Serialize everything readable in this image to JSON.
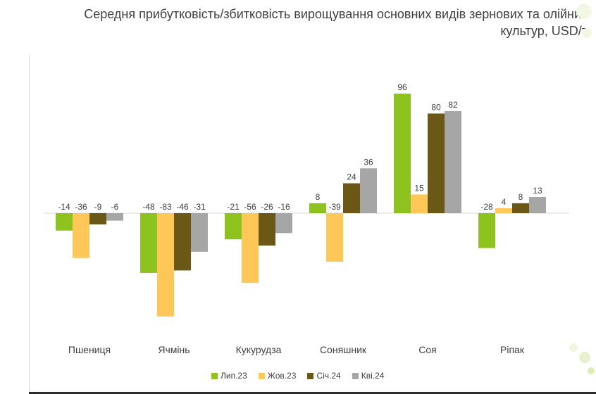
{
  "title_line1": "Середня прибутковість/збитковість вирощування основних видів зернових та олійних",
  "title_line2": "культур, USD/т",
  "colors": {
    "s1": "#8dc21f",
    "s2": "#ffc658",
    "s3": "#6b5816",
    "s4": "#a6a6a6",
    "label": "#404040"
  },
  "chart_data": {
    "type": "bar",
    "title": "Середня прибутковість/збитковість вирощування основних видів зернових та олійних культур, USD/т",
    "categories": [
      "Пшениця",
      "Ячмінь",
      "Кукурудза",
      "Соняшник",
      "Соя",
      "Ріпак"
    ],
    "series": [
      {
        "name": "Лип.23",
        "values": [
          -14,
          -48,
          -21,
          8,
          96,
          -28
        ]
      },
      {
        "name": "Жов.23",
        "values": [
          -36,
          -83,
          -56,
          -39,
          15,
          4
        ]
      },
      {
        "name": "Січ.24",
        "values": [
          -9,
          -46,
          -26,
          24,
          80,
          8
        ]
      },
      {
        "name": "Кві.24",
        "values": [
          -6,
          -31,
          -16,
          36,
          82,
          13
        ]
      }
    ],
    "ylim": [
      -83,
      96
    ],
    "grid": false,
    "legend": "bottom"
  }
}
